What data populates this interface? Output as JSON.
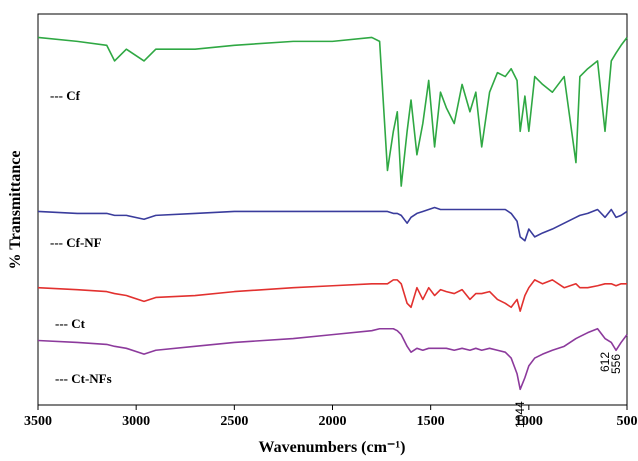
{
  "chart_data": {
    "type": "line",
    "x_label": "Wavenumbers (cm⁻¹)",
    "y_label": "% Transmittance",
    "x": [
      3500,
      3300,
      3150,
      3110,
      3050,
      2960,
      2900,
      2700,
      2500,
      2200,
      2000,
      1800,
      1760,
      1720,
      1690,
      1670,
      1650,
      1620,
      1600,
      1570,
      1540,
      1510,
      1480,
      1450,
      1420,
      1380,
      1340,
      1300,
      1270,
      1240,
      1200,
      1160,
      1120,
      1090,
      1060,
      1044,
      1020,
      1000,
      970,
      930,
      880,
      820,
      760,
      740,
      700,
      650,
      612,
      580,
      556,
      530,
      500
    ],
    "xlim": [
      3500,
      500
    ],
    "xticks": [
      3500,
      3000,
      2500,
      2000,
      1500,
      1000,
      500
    ],
    "ylim": [
      0,
      100
    ],
    "series": [
      {
        "name": "--- Cf",
        "color": "#2fa843",
        "values": [
          94,
          93,
          92,
          88,
          91,
          88,
          91,
          91,
          92,
          93,
          93,
          94,
          93,
          60,
          70,
          75,
          56,
          70,
          78,
          64,
          72,
          83,
          66,
          80,
          76,
          72,
          82,
          75,
          80,
          66,
          80,
          85,
          84,
          86,
          83,
          70,
          79,
          70,
          84,
          82,
          80,
          84,
          62,
          84,
          86,
          88,
          70,
          88,
          90,
          92,
          94
        ]
      },
      {
        "name": "--- Cf-NF",
        "color": "#3a3c9c",
        "values": [
          49.5,
          49,
          49,
          48.5,
          48.5,
          47.5,
          48.5,
          49,
          49.5,
          49.5,
          49.5,
          49.5,
          49.5,
          49.5,
          49,
          49,
          48.5,
          46.5,
          48,
          49,
          49.5,
          50,
          50.5,
          50,
          50,
          50,
          50,
          50,
          50,
          50,
          50,
          50,
          50,
          49,
          47,
          43,
          42,
          45,
          43,
          44,
          45,
          46.5,
          48,
          48.5,
          49,
          50,
          48,
          50,
          48,
          48.5,
          49.5
        ]
      },
      {
        "name": "--- Ct",
        "color": "#e2312f",
        "values": [
          30,
          29.5,
          29,
          28.5,
          28,
          26.5,
          27.5,
          28,
          29,
          30,
          30.5,
          31,
          31,
          31,
          32,
          32,
          31,
          26,
          25,
          30,
          27,
          30,
          28,
          29.5,
          29,
          28.5,
          29.5,
          27,
          28.5,
          28.5,
          29,
          27,
          26,
          25,
          27,
          24,
          28,
          30,
          32,
          31,
          32,
          30,
          31,
          30,
          30,
          30.5,
          31,
          31,
          30.5,
          31,
          31
        ]
      },
      {
        "name": "--- Ct-NFs",
        "color": "#8c3a9c",
        "values": [
          16.5,
          16,
          15.5,
          15,
          14.5,
          13,
          14,
          15,
          16,
          17,
          18,
          19,
          19.5,
          19.5,
          19.5,
          19,
          18,
          15,
          13.5,
          14.5,
          14,
          14.5,
          14.5,
          14.5,
          14.5,
          14,
          14.5,
          14,
          14.5,
          14,
          14.5,
          14,
          13.5,
          12,
          8,
          4,
          7,
          10,
          12,
          13,
          14,
          15,
          17,
          17.5,
          18.5,
          19.5,
          17,
          16,
          14,
          16,
          18
        ]
      }
    ],
    "annotations": [
      {
        "text": "1044",
        "x": 1044
      },
      {
        "text": "612",
        "x": 612
      },
      {
        "text": "556",
        "x": 556
      }
    ]
  }
}
